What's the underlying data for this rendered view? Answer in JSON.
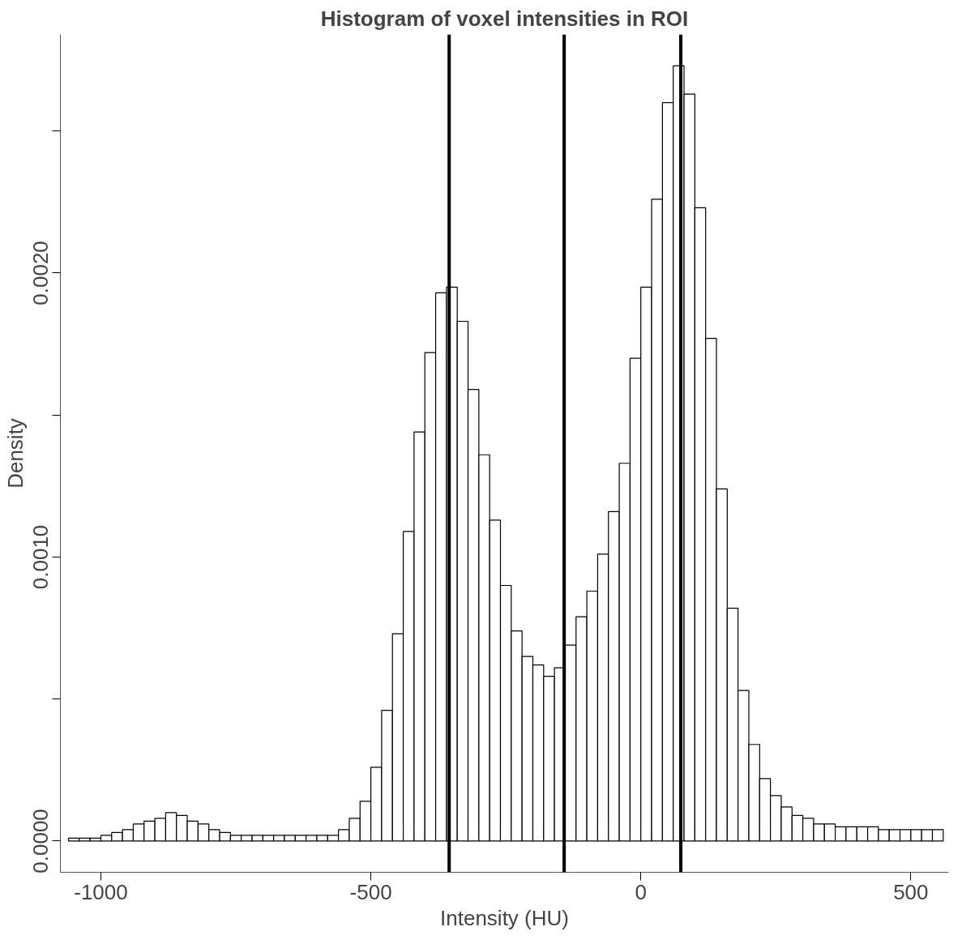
{
  "chart_data": {
    "type": "histogram",
    "title": "Histogram of voxel intensities in ROI",
    "xlabel": "Intensity (HU)",
    "ylabel": "Density",
    "bins": [
      -1060,
      -1040,
      -1020,
      -1000,
      -980,
      -960,
      -940,
      -920,
      -900,
      -880,
      -860,
      -840,
      -820,
      -800,
      -780,
      -760,
      -740,
      -720,
      -700,
      -680,
      -660,
      -640,
      -620,
      -600,
      -580,
      -560,
      -540,
      -520,
      -500,
      -480,
      -460,
      -440,
      -420,
      -400,
      -380,
      -360,
      -340,
      -320,
      -300,
      -280,
      -260,
      -240,
      -220,
      -200,
      -180,
      -160,
      -140,
      -120,
      -100,
      -80,
      -60,
      -40,
      -20,
      0,
      20,
      40,
      60,
      80,
      100,
      120,
      140,
      160,
      180,
      200,
      220,
      240,
      260,
      280,
      300,
      320,
      340,
      360,
      380,
      400,
      420,
      440,
      460,
      480,
      500,
      520,
      540,
      560
    ],
    "values": [
      1e-05,
      1e-05,
      1e-05,
      2e-05,
      3e-05,
      4e-05,
      6e-05,
      7e-05,
      8e-05,
      0.0001,
      9e-05,
      7e-05,
      6e-05,
      4e-05,
      3e-05,
      2e-05,
      2e-05,
      2e-05,
      2e-05,
      2e-05,
      2e-05,
      2e-05,
      2e-05,
      2e-05,
      2e-05,
      4e-05,
      8e-05,
      0.00014,
      0.00026,
      0.00046,
      0.00073,
      0.00109,
      0.00144,
      0.00172,
      0.00193,
      0.00195,
      0.00183,
      0.00159,
      0.00136,
      0.00113,
      0.0009,
      0.00074,
      0.00065,
      0.00062,
      0.00058,
      0.00061,
      0.00069,
      0.00079,
      0.00088,
      0.00101,
      0.00116,
      0.00133,
      0.0017,
      0.00195,
      0.00226,
      0.0026,
      0.00273,
      0.00263,
      0.00223,
      0.00177,
      0.00124,
      0.00082,
      0.00053,
      0.00034,
      0.00022,
      0.00016,
      0.00012,
      9e-05,
      8e-05,
      6e-05,
      6e-05,
      5e-05,
      5e-05,
      5e-05,
      5e-05,
      4e-05,
      4e-05,
      4e-05,
      4e-05,
      4e-05,
      4e-05
    ],
    "color": "#ffffff",
    "xlim": [
      -1075,
      570
    ],
    "ylim": [
      -0.00011,
      0.00284
    ],
    "xticks": [
      -1000,
      -500,
      0,
      500
    ],
    "yticks": [
      {
        "value": 0,
        "label": "0.0000"
      },
      {
        "value": 0.0005,
        "label": null
      },
      {
        "value": 0.001,
        "label": "0.0010"
      },
      {
        "value": 0.0015,
        "label": null
      },
      {
        "value": 0.002,
        "label": "0.0020"
      },
      {
        "value": 0.0025,
        "label": null
      }
    ],
    "ref_lines": [
      {
        "axis": "x",
        "value": -355,
        "label": null,
        "color": "#000000"
      },
      {
        "axis": "x",
        "value": -142,
        "label": null,
        "color": "#000000"
      },
      {
        "axis": "x",
        "value": 74,
        "label": null,
        "color": "#000000"
      }
    ]
  }
}
